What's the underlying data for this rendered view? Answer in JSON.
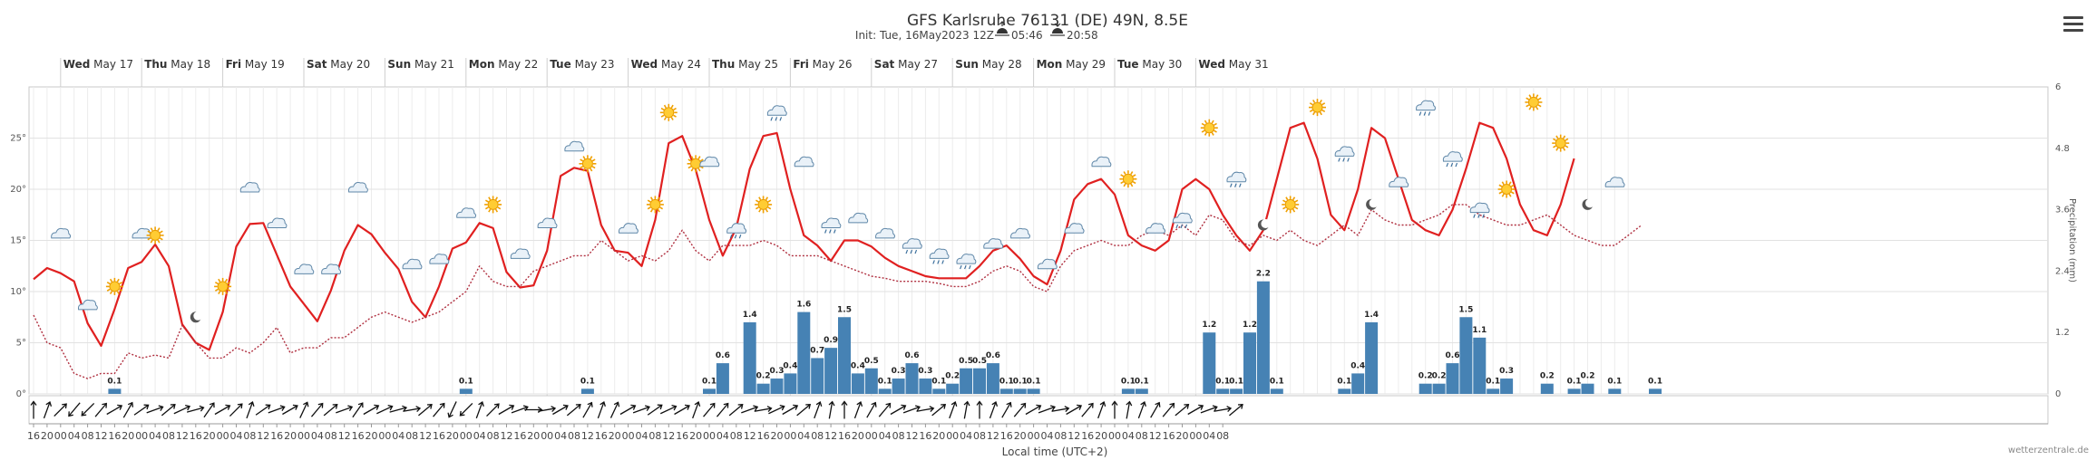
{
  "header": {
    "title": "GFS Karlsruhe 76131 (DE) 49N, 8.5E",
    "init": "Init: Tue, 16May2023 12Z",
    "sunrise": "05:46",
    "sunset": "20:58"
  },
  "credit": "wetterzentrale.de",
  "menu_icon": "hamburger-menu-icon",
  "chart_data": {
    "type": "line",
    "xlabel": "Local time (UTC+2)",
    "y_left_ticks": [
      "0°",
      "5°",
      "10°",
      "15°",
      "20°",
      "25°"
    ],
    "y_left_range": [
      0,
      30
    ],
    "y_right_label": "Precipitation (mm)",
    "y_right_ticks": [
      "0",
      "1.2",
      "2.4",
      "3.6",
      "4.8",
      "6"
    ],
    "y_right_range": [
      0,
      6
    ],
    "grid": true,
    "days": [
      {
        "dow": "Wed",
        "date": "May 17"
      },
      {
        "dow": "Thu",
        "date": "May 18"
      },
      {
        "dow": "Fri",
        "date": "May 19"
      },
      {
        "dow": "Sat",
        "date": "May 20"
      },
      {
        "dow": "Sun",
        "date": "May 21"
      },
      {
        "dow": "Mon",
        "date": "May 22"
      },
      {
        "dow": "Tue",
        "date": "May 23"
      },
      {
        "dow": "Wed",
        "date": "May 24"
      },
      {
        "dow": "Thu",
        "date": "May 25"
      },
      {
        "dow": "Fri",
        "date": "May 26"
      },
      {
        "dow": "Sat",
        "date": "May 27"
      },
      {
        "dow": "Sun",
        "date": "May 28"
      },
      {
        "dow": "Mon",
        "date": "May 29"
      },
      {
        "dow": "Tue",
        "date": "May 30"
      },
      {
        "dow": "Wed",
        "date": "May 31"
      }
    ],
    "hour_ticks": [
      "16",
      "20",
      "00",
      "04",
      "08",
      "12",
      "16",
      "20",
      "00",
      "04",
      "08",
      "12",
      "16",
      "20",
      "00",
      "04",
      "08",
      "12",
      "16",
      "20",
      "00",
      "04",
      "08",
      "12",
      "16",
      "20",
      "00",
      "04",
      "08",
      "12",
      "16",
      "20",
      "00",
      "04",
      "08",
      "12",
      "16",
      "20",
      "00",
      "04",
      "08",
      "12",
      "16",
      "20",
      "00",
      "04",
      "08",
      "12",
      "16",
      "20",
      "00",
      "04",
      "08",
      "12",
      "16",
      "20",
      "00",
      "04",
      "08",
      "12",
      "16",
      "20",
      "00",
      "04",
      "08",
      "12",
      "16",
      "20",
      "00",
      "04",
      "08",
      "12",
      "16",
      "20",
      "00",
      "04",
      "08",
      "12",
      "16",
      "20",
      "00",
      "04",
      "08",
      "12",
      "16",
      "20",
      "00",
      "04",
      "08"
    ],
    "series": [
      {
        "name": "",
        "color": "#e02020",
        "style": "solid",
        "values": [
          11.2,
          12.3,
          11.8,
          11.0,
          6.9,
          4.7,
          8.3,
          12.3,
          12.9,
          14.6,
          12.5,
          6.8,
          5.0,
          4.3,
          8.0,
          14.4,
          16.6,
          16.7,
          13.6,
          10.5,
          8.8,
          7.1,
          10.1,
          14.0,
          16.5,
          15.6,
          13.8,
          12.2,
          9.0,
          7.5,
          10.5,
          14.2,
          14.8,
          16.7,
          16.2,
          11.9,
          10.4,
          10.6,
          14.0,
          21.3,
          22.1,
          21.8,
          16.5,
          14.0,
          13.8,
          12.5,
          17.0,
          24.5,
          25.2,
          21.9,
          17.0,
          13.5,
          16.2,
          22.0,
          25.2,
          25.5,
          20.0,
          15.5,
          14.5,
          13.0,
          15.0,
          15.0,
          14.4,
          13.3,
          12.5,
          12.0,
          11.5,
          11.3,
          11.3,
          11.3,
          12.5,
          14.0,
          14.5,
          13.2,
          11.5,
          10.7,
          14.0,
          19.0,
          20.5,
          21.0,
          19.5,
          15.5,
          14.5,
          14.0,
          15.0,
          20.0,
          21.0,
          20.0,
          17.5,
          15.5,
          14.0,
          16.0,
          21.0,
          26.0,
          26.5,
          23.0,
          17.5,
          16.0,
          20.0,
          26.0,
          25.0,
          21.0,
          17.0,
          16.0,
          15.5,
          18.0,
          22.0,
          26.5,
          26.0,
          23.0,
          18.5,
          16.0,
          15.5,
          18.5,
          23.0
        ]
      },
      {
        "name": "",
        "color": "#b03040",
        "style": "dotted",
        "values": [
          7.7,
          5.0,
          4.5,
          2.0,
          1.5,
          2.0,
          2.0,
          4.0,
          3.5,
          3.8,
          3.5,
          6.7,
          5.0,
          3.5,
          3.5,
          4.5,
          4.0,
          5.0,
          6.5,
          4.0,
          4.5,
          4.5,
          5.5,
          5.5,
          6.5,
          7.5,
          8.0,
          7.5,
          7.0,
          7.5,
          8.0,
          9.0,
          10.0,
          12.5,
          11.0,
          10.5,
          10.5,
          12.0,
          12.5,
          13.0,
          13.5,
          13.5,
          15.0,
          14.0,
          13.0,
          13.5,
          13.0,
          14.0,
          16.0,
          14.0,
          13.0,
          14.5,
          14.5,
          14.5,
          15.0,
          14.5,
          13.5,
          13.5,
          13.5,
          13.0,
          12.5,
          12.0,
          11.5,
          11.3,
          11.0,
          11.0,
          11.0,
          10.8,
          10.5,
          10.5,
          11.0,
          12.0,
          12.5,
          12.0,
          10.5,
          10.0,
          12.5,
          14.0,
          14.5,
          15.0,
          14.5,
          14.5,
          15.5,
          16.0,
          15.5,
          16.5,
          15.5,
          17.5,
          17.0,
          15.0,
          14.5,
          15.5,
          15.0,
          16.0,
          15.0,
          14.5,
          15.5,
          16.5,
          15.5,
          18.0,
          17.0,
          16.5,
          16.5,
          17.0,
          17.5,
          18.5,
          18.5,
          17.5,
          17.0,
          16.5,
          16.5,
          17.0,
          17.5,
          16.5,
          15.5,
          15.0,
          14.5,
          14.5,
          15.5,
          16.5
        ]
      }
    ],
    "precip": [
      {
        "i": 6,
        "v": 0.1
      },
      {
        "i": 32,
        "v": 0.1
      },
      {
        "i": 41,
        "v": 0.1
      },
      {
        "i": 50,
        "v": 0.1
      },
      {
        "i": 51,
        "v": 0.6
      },
      {
        "i": 53,
        "v": 1.4
      },
      {
        "i": 54,
        "v": 0.2
      },
      {
        "i": 55,
        "v": 0.3
      },
      {
        "i": 56,
        "v": 0.4
      },
      {
        "i": 57,
        "v": 1.6
      },
      {
        "i": 58,
        "v": 0.7
      },
      {
        "i": 59,
        "v": 0.9
      },
      {
        "i": 60,
        "v": 1.5
      },
      {
        "i": 61,
        "v": 0.4
      },
      {
        "i": 62,
        "v": 0.5
      },
      {
        "i": 63,
        "v": 0.1
      },
      {
        "i": 64,
        "v": 0.3
      },
      {
        "i": 65,
        "v": 0.6
      },
      {
        "i": 66,
        "v": 0.3
      },
      {
        "i": 67,
        "v": 0.1
      },
      {
        "i": 68,
        "v": 0.2
      },
      {
        "i": 69,
        "v": 0.5
      },
      {
        "i": 70,
        "v": 0.5
      },
      {
        "i": 71,
        "v": 0.6
      },
      {
        "i": 72,
        "v": 0.1
      },
      {
        "i": 73,
        "v": 0.1
      },
      {
        "i": 74,
        "v": 0.1
      },
      {
        "i": 81,
        "v": 0.1
      },
      {
        "i": 82,
        "v": 0.1
      },
      {
        "i": 87,
        "v": 1.2
      },
      {
        "i": 88,
        "v": 0.1
      },
      {
        "i": 89,
        "v": 0.1
      },
      {
        "i": 90,
        "v": 1.2
      },
      {
        "i": 91,
        "v": 2.2
      },
      {
        "i": 92,
        "v": 0.1
      },
      {
        "i": 97,
        "v": 0.1
      },
      {
        "i": 98,
        "v": 0.4
      },
      {
        "i": 99,
        "v": 1.4
      },
      {
        "i": 103,
        "v": 0.2
      },
      {
        "i": 104,
        "v": 0.2
      },
      {
        "i": 105,
        "v": 0.6
      },
      {
        "i": 106,
        "v": 1.5
      },
      {
        "i": 107,
        "v": 1.1
      },
      {
        "i": 108,
        "v": 0.1
      },
      {
        "i": 109,
        "v": 0.3
      },
      {
        "i": 112,
        "v": 0.2
      },
      {
        "i": 114,
        "v": 0.1
      },
      {
        "i": 115,
        "v": 0.2
      },
      {
        "i": 117,
        "v": 0.1
      },
      {
        "i": 120,
        "v": 0.1
      }
    ],
    "wind_dirs": [
      180,
      200,
      225,
      40,
      45,
      220,
      240,
      210,
      235,
      250,
      230,
      245,
      255,
      215,
      240,
      225,
      200,
      235,
      250,
      240,
      205,
      220,
      230,
      250,
      215,
      240,
      245,
      255,
      260,
      230,
      220,
      25,
      45,
      200,
      225,
      240,
      250,
      270,
      260,
      240,
      230,
      210,
      200,
      205,
      240,
      250,
      235,
      245,
      240,
      200,
      220,
      220,
      230,
      250,
      260,
      245,
      240,
      230,
      200,
      190,
      180,
      200,
      210,
      220,
      240,
      250,
      260,
      230,
      200,
      190,
      180,
      200,
      210,
      220,
      240,
      250,
      260,
      240,
      220,
      200,
      180,
      190,
      200,
      210,
      220,
      230,
      240,
      250,
      260,
      230
    ],
    "weather_icons": [
      {
        "i": 2,
        "icon": "cloud-icon",
        "t": 15.5
      },
      {
        "i": 4,
        "icon": "cloud-icon",
        "t": 8.5
      },
      {
        "i": 6,
        "icon": "sun-icon",
        "t": 10.5
      },
      {
        "i": 8,
        "icon": "cloud-icon",
        "t": 15.5
      },
      {
        "i": 9,
        "icon": "sun-icon",
        "t": 15.5
      },
      {
        "i": 12,
        "icon": "moon-icon",
        "t": 7.5
      },
      {
        "i": 14,
        "icon": "sun-icon",
        "t": 10.5
      },
      {
        "i": 16,
        "icon": "cloud-icon",
        "t": 20.0
      },
      {
        "i": 18,
        "icon": "cloud-icon",
        "t": 16.5
      },
      {
        "i": 20,
        "icon": "cloud-icon",
        "t": 12.0
      },
      {
        "i": 22,
        "icon": "cloud-icon",
        "t": 12.0
      },
      {
        "i": 24,
        "icon": "cloud-icon",
        "t": 20.0
      },
      {
        "i": 28,
        "icon": "cloud-icon",
        "t": 12.5
      },
      {
        "i": 30,
        "icon": "cloud-icon",
        "t": 13.0
      },
      {
        "i": 32,
        "icon": "cloud-icon",
        "t": 17.5
      },
      {
        "i": 34,
        "icon": "sun-icon",
        "t": 18.5
      },
      {
        "i": 36,
        "icon": "cloud-icon",
        "t": 13.5
      },
      {
        "i": 38,
        "icon": "cloud-icon",
        "t": 16.5
      },
      {
        "i": 40,
        "icon": "cloud-icon",
        "t": 24.0
      },
      {
        "i": 41,
        "icon": "sun-icon",
        "t": 22.5
      },
      {
        "i": 44,
        "icon": "cloud-icon",
        "t": 16.0
      },
      {
        "i": 46,
        "icon": "sun-icon",
        "t": 18.5
      },
      {
        "i": 47,
        "icon": "sun-icon",
        "t": 27.5
      },
      {
        "i": 49,
        "icon": "sun-icon",
        "t": 22.5
      },
      {
        "i": 50,
        "icon": "cloud-icon",
        "t": 22.5
      },
      {
        "i": 52,
        "icon": "rain-cloud-icon",
        "t": 16.0
      },
      {
        "i": 54,
        "icon": "sun-icon",
        "t": 18.5
      },
      {
        "i": 55,
        "icon": "rain-cloud-icon",
        "t": 27.5
      },
      {
        "i": 57,
        "icon": "cloud-icon",
        "t": 22.5
      },
      {
        "i": 59,
        "icon": "rain-cloud-icon",
        "t": 16.5
      },
      {
        "i": 61,
        "icon": "cloud-icon",
        "t": 17.0
      },
      {
        "i": 63,
        "icon": "cloud-icon",
        "t": 15.5
      },
      {
        "i": 65,
        "icon": "rain-cloud-icon",
        "t": 14.5
      },
      {
        "i": 67,
        "icon": "rain-cloud-icon",
        "t": 13.5
      },
      {
        "i": 69,
        "icon": "rain-cloud-icon",
        "t": 13.0
      },
      {
        "i": 71,
        "icon": "cloud-icon",
        "t": 14.5
      },
      {
        "i": 73,
        "icon": "cloud-icon",
        "t": 15.5
      },
      {
        "i": 75,
        "icon": "cloud-icon",
        "t": 12.5
      },
      {
        "i": 77,
        "icon": "cloud-icon",
        "t": 16.0
      },
      {
        "i": 79,
        "icon": "cloud-icon",
        "t": 22.5
      },
      {
        "i": 81,
        "icon": "sun-icon",
        "t": 21.0
      },
      {
        "i": 83,
        "icon": "cloud-icon",
        "t": 16.0
      },
      {
        "i": 85,
        "icon": "rain-cloud-icon",
        "t": 17.0
      },
      {
        "i": 87,
        "icon": "sun-icon",
        "t": 26.0
      },
      {
        "i": 89,
        "icon": "rain-cloud-icon",
        "t": 21.0
      },
      {
        "i": 91,
        "icon": "moon-icon",
        "t": 16.5
      },
      {
        "i": 93,
        "icon": "sun-icon",
        "t": 18.5
      },
      {
        "i": 95,
        "icon": "sun-icon",
        "t": 28.0
      },
      {
        "i": 97,
        "icon": "rain-cloud-icon",
        "t": 23.5
      },
      {
        "i": 99,
        "icon": "moon-icon",
        "t": 18.5
      },
      {
        "i": 101,
        "icon": "cloud-icon",
        "t": 20.5
      },
      {
        "i": 103,
        "icon": "rain-cloud-icon",
        "t": 28.0
      },
      {
        "i": 105,
        "icon": "rain-cloud-icon",
        "t": 23.0
      },
      {
        "i": 107,
        "icon": "rain-cloud-icon",
        "t": 18.0
      },
      {
        "i": 109,
        "icon": "sun-icon",
        "t": 20.0
      },
      {
        "i": 111,
        "icon": "sun-icon",
        "t": 28.5
      },
      {
        "i": 113,
        "icon": "sun-icon",
        "t": 24.5
      },
      {
        "i": 115,
        "icon": "moon-icon",
        "t": 18.5
      },
      {
        "i": 117,
        "icon": "cloud-icon",
        "t": 20.5
      }
    ]
  }
}
